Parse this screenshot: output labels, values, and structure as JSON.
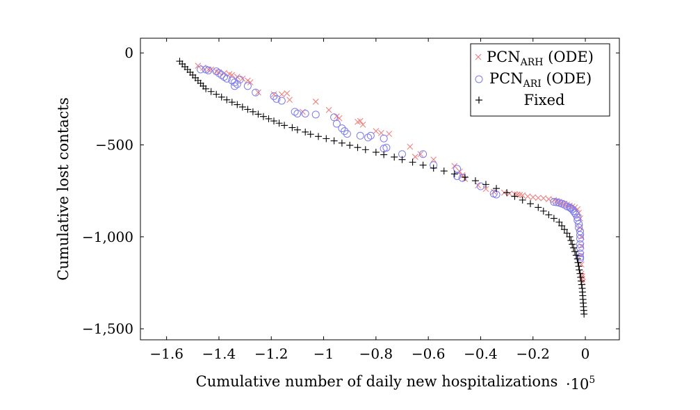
{
  "chart_data": {
    "type": "scatter",
    "xlabel": "Cumulative number of daily new hospitalizations",
    "x_multiplier": {
      "base": "10",
      "exponent": "5"
    },
    "ylabel": "Cumulative lost contacts",
    "xlim": [
      -1.7,
      0.13
    ],
    "ylim": [
      -1560,
      80
    ],
    "xticks": [
      -1.6,
      -1.4,
      -1.2,
      -1,
      -0.8,
      -0.6,
      -0.4,
      -0.2,
      0
    ],
    "xtick_labels": [
      "−1.6",
      "−1.4",
      "−1.2",
      "−1",
      "−0.8",
      "−0.6",
      "−0.4",
      "−0.2",
      "0"
    ],
    "yticks": [
      0,
      -500,
      -1000,
      -1500
    ],
    "ytick_labels": [
      "0",
      "−500",
      "−1,000",
      "−1,500"
    ],
    "grid": false,
    "legend_position": "top-right",
    "series": [
      {
        "name": "PCN_ARH (ODE)",
        "name_main": "PCN",
        "name_sub": "ARH",
        "name_suffix": " (ODE)",
        "marker": "x",
        "color": "#f08080",
        "points": [
          [
            -1.48,
            -70
          ],
          [
            -1.46,
            -80
          ],
          [
            -1.44,
            -90
          ],
          [
            -1.43,
            -90
          ],
          [
            -1.41,
            -100
          ],
          [
            -1.4,
            -105
          ],
          [
            -1.38,
            -110
          ],
          [
            -1.36,
            -115
          ],
          [
            -1.35,
            -120
          ],
          [
            -1.33,
            -130
          ],
          [
            -1.31,
            -140
          ],
          [
            -1.29,
            -150
          ],
          [
            -1.28,
            -160
          ],
          [
            -1.25,
            -215
          ],
          [
            -1.19,
            -225
          ],
          [
            -1.16,
            -225
          ],
          [
            -1.14,
            -220
          ],
          [
            -1.13,
            -255
          ],
          [
            -1.08,
            -320
          ],
          [
            -1.03,
            -265
          ],
          [
            -0.98,
            -310
          ],
          [
            -0.95,
            -345
          ],
          [
            -0.94,
            -355
          ],
          [
            -0.87,
            -375
          ],
          [
            -0.86,
            -370
          ],
          [
            -0.85,
            -390
          ],
          [
            -0.8,
            -425
          ],
          [
            -0.78,
            -435
          ],
          [
            -0.75,
            -440
          ],
          [
            -0.67,
            -510
          ],
          [
            -0.65,
            -565
          ],
          [
            -0.63,
            -550
          ],
          [
            -0.58,
            -580
          ],
          [
            -0.5,
            -615
          ],
          [
            -0.48,
            -645
          ],
          [
            -0.47,
            -665
          ],
          [
            -0.46,
            -685
          ],
          [
            -0.41,
            -720
          ],
          [
            -0.38,
            -740
          ],
          [
            -0.35,
            -755
          ],
          [
            -0.31,
            -760
          ],
          [
            -0.29,
            -765
          ],
          [
            -0.27,
            -768
          ],
          [
            -0.26,
            -770
          ],
          [
            -0.25,
            -772
          ],
          [
            -0.24,
            -775
          ],
          [
            -0.22,
            -780
          ],
          [
            -0.2,
            -785
          ],
          [
            -0.18,
            -788
          ],
          [
            -0.16,
            -790
          ],
          [
            -0.14,
            -795
          ],
          [
            -0.12,
            -800
          ],
          [
            -0.11,
            -805
          ],
          [
            -0.1,
            -810
          ],
          [
            -0.09,
            -815
          ],
          [
            -0.08,
            -820
          ],
          [
            -0.07,
            -825
          ],
          [
            -0.06,
            -830
          ],
          [
            -0.05,
            -835
          ],
          [
            -0.04,
            -840
          ],
          [
            -0.03,
            -850
          ],
          [
            -0.025,
            -870
          ],
          [
            -0.02,
            -900
          ],
          [
            -0.02,
            -950
          ],
          [
            -0.015,
            -1000
          ],
          [
            -0.015,
            -1050
          ],
          [
            -0.015,
            -1100
          ],
          [
            -0.015,
            -1150
          ],
          [
            -0.015,
            -1200
          ],
          [
            -0.012,
            -1215
          ],
          [
            -0.012,
            -1230
          ],
          [
            -0.01,
            -1245
          ]
        ]
      },
      {
        "name": "PCN_ARI (ODE)",
        "name_main": "PCN",
        "name_sub": "ARI",
        "name_suffix": " (ODE)",
        "marker": "circle",
        "color": "#7b7bf0",
        "points": [
          [
            -1.47,
            -90
          ],
          [
            -1.45,
            -90
          ],
          [
            -1.44,
            -95
          ],
          [
            -1.41,
            -100
          ],
          [
            -1.4,
            -110
          ],
          [
            -1.39,
            -120
          ],
          [
            -1.38,
            -130
          ],
          [
            -1.37,
            -140
          ],
          [
            -1.35,
            -150
          ],
          [
            -1.34,
            -160
          ],
          [
            -1.34,
            -180
          ],
          [
            -1.33,
            -170
          ],
          [
            -1.32,
            -145
          ],
          [
            -1.29,
            -180
          ],
          [
            -1.26,
            -215
          ],
          [
            -1.19,
            -235
          ],
          [
            -1.18,
            -250
          ],
          [
            -1.16,
            -260
          ],
          [
            -1.11,
            -320
          ],
          [
            -1.1,
            -330
          ],
          [
            -1.07,
            -330
          ],
          [
            -1.03,
            -335
          ],
          [
            -0.96,
            -350
          ],
          [
            -0.95,
            -385
          ],
          [
            -0.93,
            -410
          ],
          [
            -0.92,
            -425
          ],
          [
            -0.91,
            -440
          ],
          [
            -0.86,
            -450
          ],
          [
            -0.83,
            -460
          ],
          [
            -0.82,
            -450
          ],
          [
            -0.77,
            -465
          ],
          [
            -0.77,
            -520
          ],
          [
            -0.76,
            -515
          ],
          [
            -0.7,
            -550
          ],
          [
            -0.62,
            -550
          ],
          [
            -0.58,
            -610
          ],
          [
            -0.49,
            -630
          ],
          [
            -0.49,
            -670
          ],
          [
            -0.47,
            -680
          ],
          [
            -0.4,
            -725
          ],
          [
            -0.35,
            -765
          ],
          [
            -0.34,
            -770
          ],
          [
            -0.12,
            -810
          ],
          [
            -0.11,
            -812
          ],
          [
            -0.1,
            -815
          ],
          [
            -0.09,
            -820
          ],
          [
            -0.08,
            -825
          ],
          [
            -0.07,
            -835
          ],
          [
            -0.06,
            -840
          ],
          [
            -0.055,
            -845
          ],
          [
            -0.05,
            -850
          ],
          [
            -0.045,
            -860
          ],
          [
            -0.04,
            -870
          ],
          [
            -0.035,
            -880
          ],
          [
            -0.03,
            -895
          ],
          [
            -0.03,
            -910
          ],
          [
            -0.025,
            -930
          ],
          [
            -0.025,
            -950
          ],
          [
            -0.02,
            -970
          ],
          [
            -0.02,
            -990
          ],
          [
            -0.02,
            -1010
          ],
          [
            -0.02,
            -1040
          ],
          [
            -0.02,
            -1060
          ],
          [
            -0.02,
            -1090
          ],
          [
            -0.02,
            -1110
          ],
          [
            -0.02,
            -1120
          ]
        ]
      },
      {
        "name": "Fixed",
        "marker": "plus",
        "color": "#000000",
        "points": [
          [
            -1.55,
            -45
          ],
          [
            -1.54,
            -60
          ],
          [
            -1.53,
            -75
          ],
          [
            -1.52,
            -90
          ],
          [
            -1.51,
            -105
          ],
          [
            -1.5,
            -120
          ],
          [
            -1.49,
            -135
          ],
          [
            -1.48,
            -150
          ],
          [
            -1.47,
            -165
          ],
          [
            -1.46,
            -180
          ],
          [
            -1.45,
            -195
          ],
          [
            -1.43,
            -210
          ],
          [
            -1.41,
            -225
          ],
          [
            -1.39,
            -240
          ],
          [
            -1.37,
            -255
          ],
          [
            -1.35,
            -268
          ],
          [
            -1.33,
            -281
          ],
          [
            -1.31,
            -294
          ],
          [
            -1.29,
            -307
          ],
          [
            -1.27,
            -320
          ],
          [
            -1.25,
            -333
          ],
          [
            -1.23,
            -346
          ],
          [
            -1.21,
            -358
          ],
          [
            -1.19,
            -370
          ],
          [
            -1.17,
            -382
          ],
          [
            -1.15,
            -394
          ],
          [
            -1.12,
            -406
          ],
          [
            -1.1,
            -418
          ],
          [
            -1.07,
            -430
          ],
          [
            -1.05,
            -442
          ],
          [
            -1.02,
            -454
          ],
          [
            -0.99,
            -466
          ],
          [
            -0.96,
            -478
          ],
          [
            -0.93,
            -490
          ],
          [
            -0.9,
            -502
          ],
          [
            -0.87,
            -514
          ],
          [
            -0.84,
            -526
          ],
          [
            -0.8,
            -540
          ],
          [
            -0.77,
            -553
          ],
          [
            -0.73,
            -566
          ],
          [
            -0.7,
            -580
          ],
          [
            -0.66,
            -594
          ],
          [
            -0.62,
            -610
          ],
          [
            -0.58,
            -626
          ],
          [
            -0.54,
            -642
          ],
          [
            -0.5,
            -658
          ],
          [
            -0.46,
            -676
          ],
          [
            -0.42,
            -695
          ],
          [
            -0.38,
            -715
          ],
          [
            -0.34,
            -737
          ],
          [
            -0.3,
            -760
          ],
          [
            -0.27,
            -780
          ],
          [
            -0.24,
            -800
          ],
          [
            -0.21,
            -820
          ],
          [
            -0.18,
            -840
          ],
          [
            -0.16,
            -860
          ],
          [
            -0.14,
            -880
          ],
          [
            -0.12,
            -900
          ],
          [
            -0.1,
            -920
          ],
          [
            -0.09,
            -940
          ],
          [
            -0.08,
            -960
          ],
          [
            -0.07,
            -980
          ],
          [
            -0.06,
            -1000
          ],
          [
            -0.055,
            -1020
          ],
          [
            -0.05,
            -1040
          ],
          [
            -0.045,
            -1060
          ],
          [
            -0.04,
            -1080
          ],
          [
            -0.035,
            -1100
          ],
          [
            -0.03,
            -1120
          ],
          [
            -0.028,
            -1140
          ],
          [
            -0.025,
            -1160
          ],
          [
            -0.023,
            -1180
          ],
          [
            -0.02,
            -1200
          ],
          [
            -0.018,
            -1220
          ],
          [
            -0.016,
            -1240
          ],
          [
            -0.014,
            -1260
          ],
          [
            -0.012,
            -1280
          ],
          [
            -0.011,
            -1300
          ],
          [
            -0.01,
            -1320
          ],
          [
            -0.009,
            -1340
          ],
          [
            -0.008,
            -1360
          ],
          [
            -0.007,
            -1380
          ],
          [
            -0.006,
            -1400
          ],
          [
            -0.005,
            -1420
          ]
        ]
      }
    ]
  }
}
